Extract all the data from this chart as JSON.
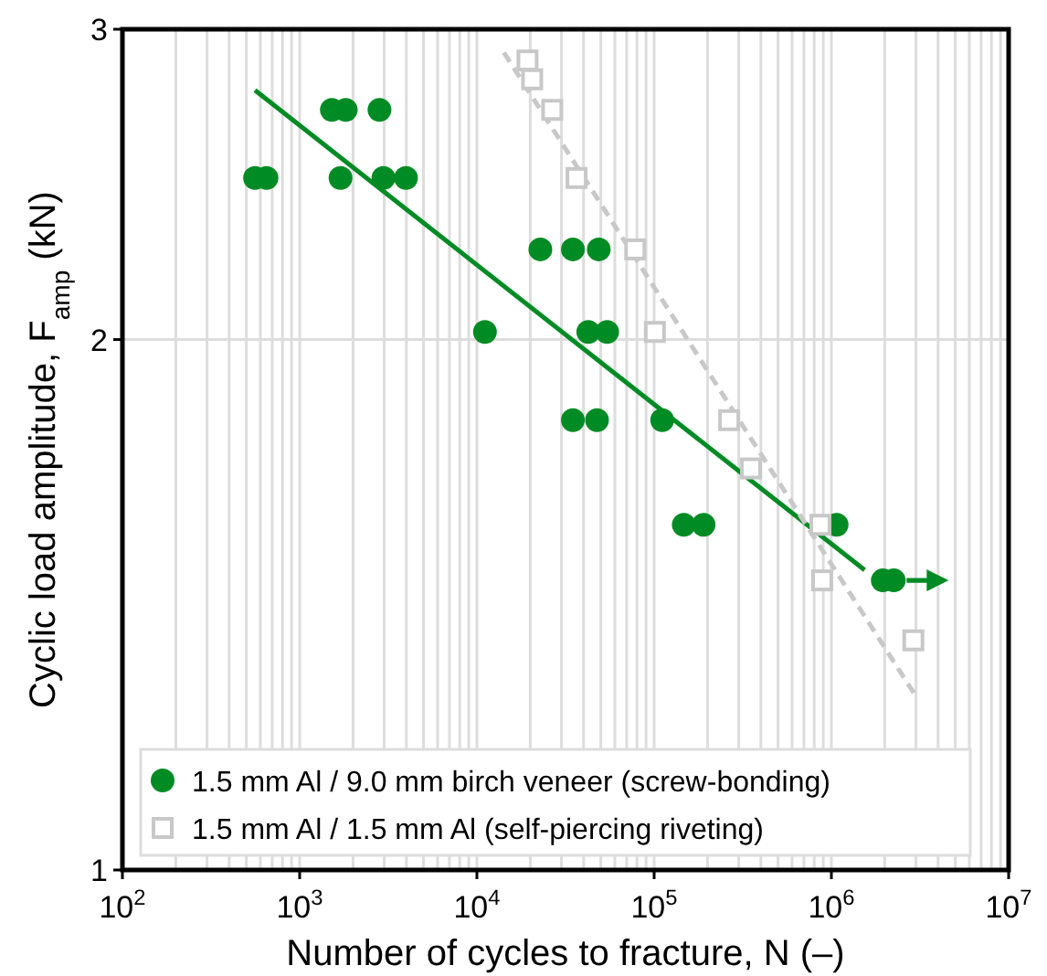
{
  "chart_data": {
    "type": "scatter",
    "xlabel": "Number of cycles to fracture, N (–)",
    "ylabel": "Cyclic load amplitude, F$_{amp}$ (kN)",
    "log": "xy",
    "grid": true,
    "legend": "bottom left",
    "xlim": [
      100,
      10000000
    ],
    "xticks": [
      {
        "value": 100,
        "label": "10$^{2}$"
      },
      {
        "value": 1000,
        "label": "10$^{3}$"
      },
      {
        "value": 10000,
        "label": "10$^{4}$"
      },
      {
        "value": 100000,
        "label": "10$^{5}$"
      },
      {
        "value": 1000000,
        "label": "10$^{6}$"
      },
      {
        "value": 10000000,
        "label": "10$^{7}$"
      }
    ],
    "ylim": [
      1,
      3
    ],
    "yticks": [
      1,
      2,
      3
    ],
    "series": [
      {
        "name": "1.5 mm Al / 9.0 mm birch veneer (screw-bonding)",
        "color": "#008b24",
        "marker": "circle",
        "x": [
          560,
          650,
          1700,
          2970,
          3980,
          1520,
          1820,
          2820,
          22800,
          34800,
          48700,
          11100,
          42500,
          54300,
          34800,
          47600,
          111000,
          147000,
          190000,
          1070000,
          1950000,
          2250000
        ],
        "values": [
          2.47,
          2.47,
          2.47,
          2.47,
          2.47,
          2.7,
          2.7,
          2.7,
          2.25,
          2.25,
          2.25,
          2.02,
          2.02,
          2.02,
          1.8,
          1.8,
          1.8,
          1.57,
          1.57,
          1.57,
          1.46,
          1.46
        ]
      },
      {
        "name": "1.5 mm Al / 1.5 mm Al (self-piercing riveting)",
        "color": "#c8c8c8",
        "marker": "square",
        "x": [
          19300,
          20500,
          26600,
          36500,
          78200,
          101000,
          265000,
          352000,
          867000,
          887000,
          2900000
        ],
        "values": [
          2.88,
          2.81,
          2.7,
          2.47,
          2.25,
          2.02,
          1.8,
          1.69,
          1.57,
          1.46,
          1.35
        ]
      },
      {
        "type": "line",
        "color": "#008b24",
        "line_style": "solid",
        "x": [
          560,
          1540000
        ],
        "values": [
          2.77,
          1.48
        ]
      },
      {
        "type": "line",
        "color": "#c8c8c8",
        "line_style": "dashed",
        "x": [
          14200,
          2920000
        ],
        "values": [
          2.91,
          1.26
        ]
      }
    ]
  }
}
